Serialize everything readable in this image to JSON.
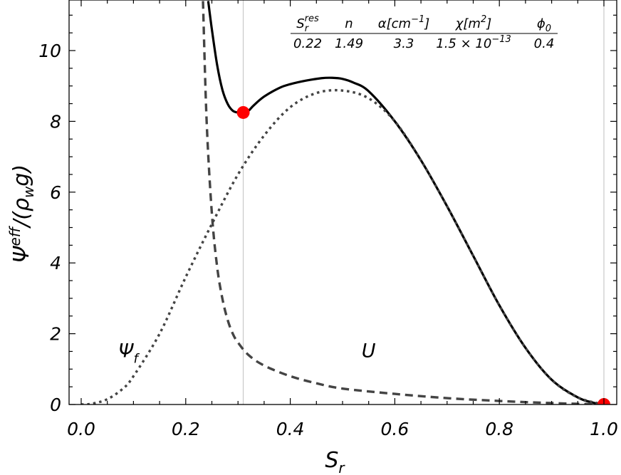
{
  "chart_data": {
    "type": "line",
    "xlabel": "S",
    "xlabel_sub": "r",
    "ylabel": "Ψ eff/(ρ w g)",
    "ylabel_parts": {
      "main": "Ψ",
      "sup": "eff",
      "rest_pre": "/(ρ",
      "rest_sub": "w",
      "rest_post": "g)"
    },
    "xlim": [
      0,
      1.0
    ],
    "ylim": [
      0,
      11.4
    ],
    "x_ticks": [
      0.0,
      0.2,
      0.4,
      0.6,
      0.8,
      1.0
    ],
    "x_tick_labels": [
      "0.0",
      "0.2",
      "0.4",
      "0.6",
      "0.8",
      "1.0"
    ],
    "y_ticks": [
      0,
      2,
      4,
      6,
      8,
      10
    ],
    "y_tick_labels": [
      "0",
      "2",
      "4",
      "6",
      "8",
      "10"
    ],
    "series": [
      {
        "style": "solid",
        "color": "#000000",
        "x": [
          0.243,
          0.25,
          0.26,
          0.27,
          0.28,
          0.29,
          0.3,
          0.31,
          0.32,
          0.33,
          0.35,
          0.38,
          0.4,
          0.43,
          0.46,
          0.48,
          0.5,
          0.52,
          0.55,
          0.6,
          0.65,
          0.7,
          0.75,
          0.8,
          0.85,
          0.9,
          0.95,
          0.98,
          1.0
        ],
        "y": [
          11.4,
          10.6,
          9.6,
          8.9,
          8.5,
          8.3,
          8.25,
          8.25,
          8.3,
          8.45,
          8.7,
          8.95,
          9.05,
          9.15,
          9.22,
          9.23,
          9.2,
          9.1,
          8.85,
          8.0,
          6.9,
          5.6,
          4.2,
          2.8,
          1.6,
          0.7,
          0.2,
          0.05,
          0.0
        ]
      },
      {
        "style": "dotted",
        "color": "#444444",
        "x": [
          0.0,
          0.02,
          0.05,
          0.08,
          0.1,
          0.15,
          0.2,
          0.25,
          0.3,
          0.35,
          0.4,
          0.45,
          0.5,
          0.55,
          0.6,
          0.65,
          0.7,
          0.75,
          0.8,
          0.85,
          0.9,
          0.95,
          1.0
        ],
        "y": [
          0.0,
          0.02,
          0.15,
          0.45,
          0.8,
          2.0,
          3.6,
          5.1,
          6.5,
          7.6,
          8.4,
          8.8,
          8.87,
          8.65,
          8.0,
          6.9,
          5.6,
          4.2,
          2.8,
          1.6,
          0.7,
          0.2,
          0.0
        ]
      },
      {
        "style": "dashed",
        "color": "#444444",
        "x": [
          0.233,
          0.24,
          0.25,
          0.26,
          0.27,
          0.28,
          0.29,
          0.3,
          0.32,
          0.35,
          0.4,
          0.45,
          0.5,
          0.6,
          0.7,
          0.8,
          0.9,
          1.0
        ],
        "y": [
          11.4,
          8.0,
          5.4,
          3.9,
          3.0,
          2.4,
          2.0,
          1.75,
          1.4,
          1.1,
          0.8,
          0.6,
          0.45,
          0.3,
          0.18,
          0.1,
          0.04,
          0.0
        ]
      }
    ],
    "vertical_lines": [
      0.31,
      1.0
    ],
    "markers": [
      {
        "x": 0.31,
        "y": 8.25,
        "color": "#ff0000"
      },
      {
        "x": 1.0,
        "y": 0.0,
        "color": "#ff0000"
      }
    ],
    "annotations": [
      {
        "text": "Ψ",
        "sub": "f",
        "x": 0.06,
        "y": 1.5
      },
      {
        "text": "U",
        "sub": "",
        "x": 0.52,
        "y": 1.5
      }
    ],
    "parameter_table": {
      "headers": [
        {
          "main": "S",
          "sub": "r",
          "sup": "res"
        },
        {
          "main": "n"
        },
        {
          "main": "α[cm",
          "sup": "−1",
          "post": "]"
        },
        {
          "main": "χ[m",
          "sup": "2",
          "post": "]"
        },
        {
          "main": "ϕ",
          "sub": "0"
        }
      ],
      "values": [
        {
          "main": "0.22"
        },
        {
          "main": "1.49"
        },
        {
          "main": "3.3"
        },
        {
          "main": "1.5 × 10",
          "sup": "−13"
        },
        {
          "main": "0.4"
        }
      ]
    }
  }
}
